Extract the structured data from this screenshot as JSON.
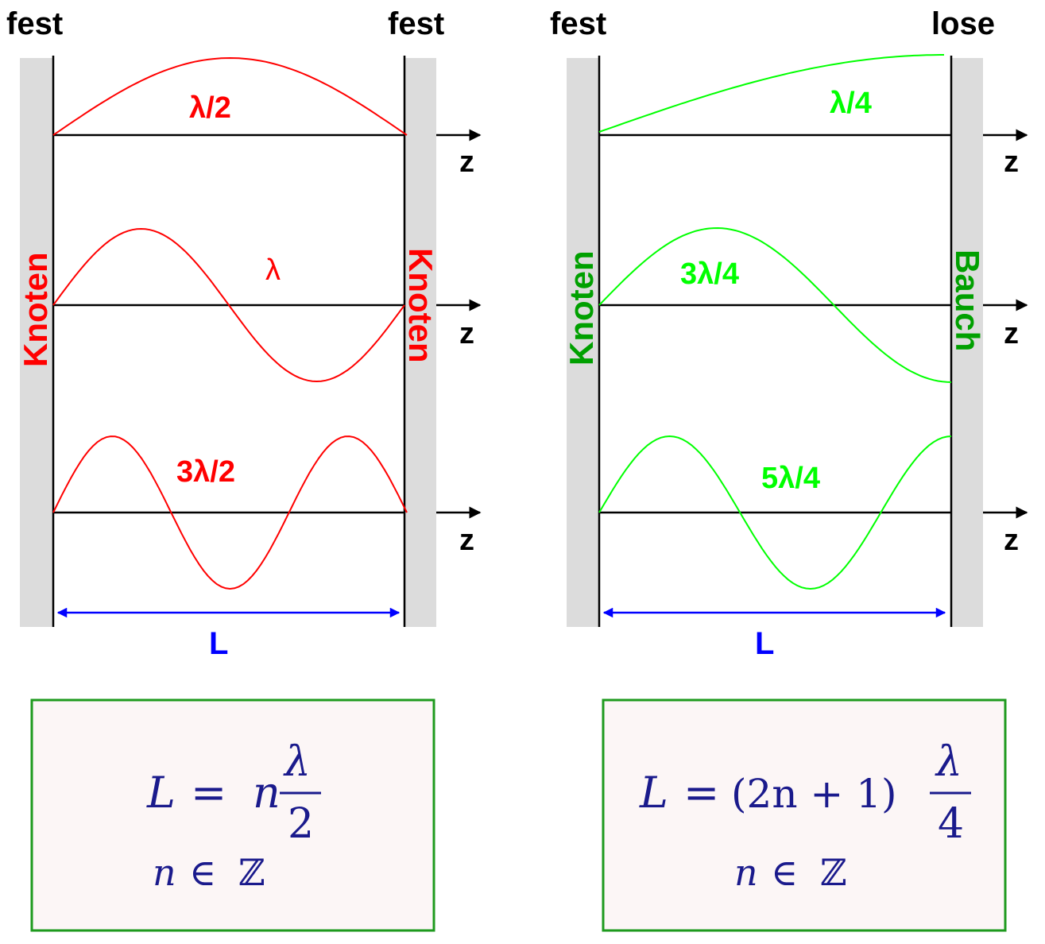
{
  "left": {
    "end_left": "fest",
    "end_right": "fest",
    "side_left": "Knoten",
    "side_right": "Knoten",
    "color": "#ff0000",
    "side_color": "#ff0000",
    "modes": [
      "λ/2",
      "λ",
      "3λ/2"
    ],
    "axis": "z",
    "length": "L",
    "formula": {
      "lhs": "L",
      "eq": "=",
      "coef": "n",
      "num": "λ",
      "den": "2",
      "domain_var": "n",
      "domain_sym": "∈",
      "domain_set": "ℤ"
    }
  },
  "right": {
    "end_left": "fest",
    "end_right": "lose",
    "side_left": "Knoten",
    "side_right": "Bauch",
    "color": "#00ff00",
    "side_color": "#00a000",
    "modes": [
      "λ/4",
      "3λ/4",
      "5λ/4"
    ],
    "axis": "z",
    "length": "L",
    "formula": {
      "lhs": "L",
      "eq": "=",
      "coef": "(2n + 1)",
      "num": "λ",
      "den": "4",
      "domain_var": "n",
      "domain_sym": "∈",
      "domain_set": "ℤ"
    }
  },
  "colors": {
    "wall": "#dcdcdc",
    "axis": "#000000",
    "length_arrow": "#0000ff",
    "box_border": "#1e9a1e",
    "box_fill": "#fcf6f6"
  }
}
